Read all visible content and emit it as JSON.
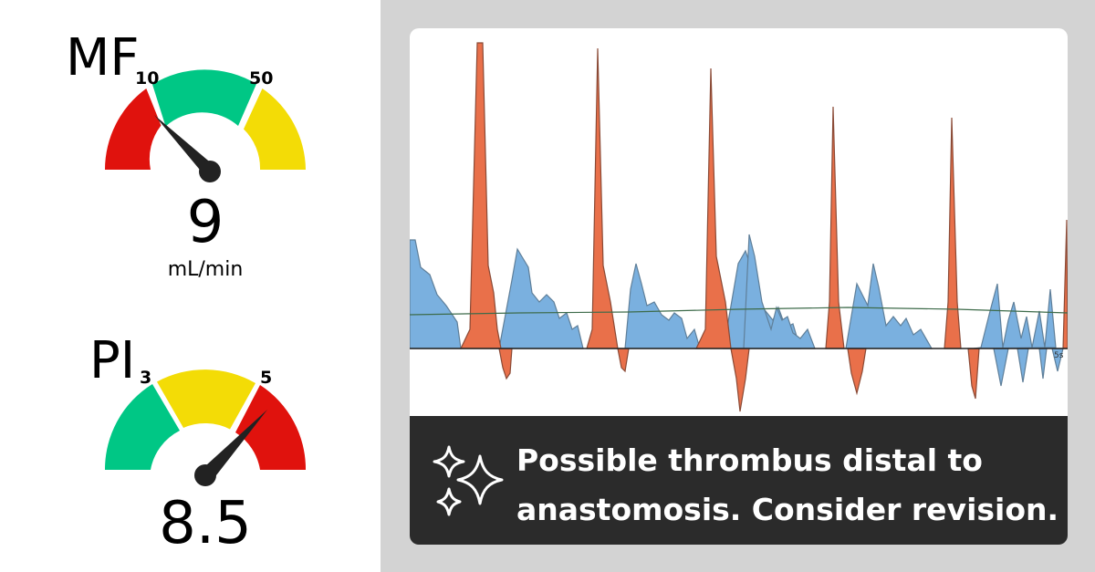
{
  "mf_gauge": {
    "title": "MF",
    "tick_low": "10",
    "tick_high": "50",
    "value": "9",
    "unit": "mL/min",
    "colors": {
      "low": "#e0120d",
      "mid": "#00c785",
      "high": "#f3dc06"
    }
  },
  "pi_gauge": {
    "title": "PI",
    "tick_low": "3",
    "tick_high": "5",
    "value": "8.5",
    "colors": {
      "low": "#00c785",
      "mid": "#f3dc06",
      "high": "#e0120d"
    }
  },
  "waveform": {
    "axis_tick": "5s",
    "colors": {
      "positive": "#e9704a",
      "flow": "#7ab0df",
      "baseline": "#222222",
      "mean": "#3d6b4a"
    }
  },
  "alert": {
    "icon": "sparkle-icon",
    "line1": "Possible thrombus distal to",
    "line2": "anastomosis. Consider revision."
  }
}
